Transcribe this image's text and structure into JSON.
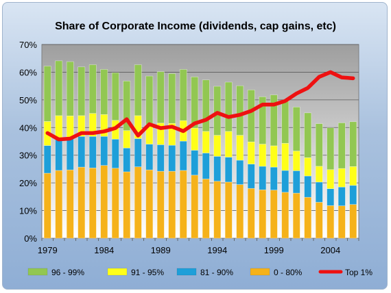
{
  "chart_data": {
    "type": "bar",
    "title": "Share of Corporate Income (dividends, cap gains, etc)",
    "xlabel": "",
    "ylabel": "",
    "ylim": [
      0,
      70
    ],
    "y_tick_step": 10,
    "y_tick_format": "percent",
    "x_tick_labels": [
      "1979",
      "1984",
      "1989",
      "1994",
      "1999",
      "2004"
    ],
    "grid": "horizontal",
    "legend_position": "bottom",
    "categories": [
      "1979",
      "1980",
      "1981",
      "1982",
      "1983",
      "1984",
      "1985",
      "1986",
      "1987",
      "1988",
      "1989",
      "1990",
      "1991",
      "1992",
      "1993",
      "1994",
      "1995",
      "1996",
      "1997",
      "1998",
      "1999",
      "2000",
      "2001",
      "2002",
      "2003",
      "2004",
      "2005",
      "2006"
    ],
    "stacked_series": [
      {
        "name": "0 - 80%",
        "color": "#f5b21a",
        "values": [
          23.5,
          24.5,
          24.7,
          25.7,
          25.4,
          26.3,
          25.3,
          24.0,
          25.8,
          24.7,
          24.2,
          24.2,
          24.5,
          22.8,
          21.4,
          20.6,
          20.3,
          19.4,
          18.0,
          17.5,
          17.4,
          16.6,
          16.3,
          14.8,
          13.0,
          11.8,
          11.7,
          12.2
        ]
      },
      {
        "name": "81 - 90%",
        "color": "#1e9fd9",
        "values": [
          10.0,
          11.5,
          11.4,
          11.1,
          11.4,
          10.5,
          10.5,
          8.6,
          10.2,
          9.3,
          9.6,
          9.4,
          10.6,
          9.0,
          9.4,
          9.0,
          9.0,
          8.8,
          8.8,
          8.5,
          8.3,
          7.9,
          8.1,
          7.7,
          7.3,
          6.1,
          6.8,
          6.9
        ]
      },
      {
        "name": "91 - 95%",
        "color": "#ffff19",
        "values": [
          8.7,
          8.3,
          8.1,
          7.5,
          8.3,
          7.9,
          6.8,
          6.3,
          8.3,
          7.1,
          7.8,
          7.9,
          7.4,
          8.0,
          7.8,
          7.6,
          9.3,
          9.0,
          8.0,
          8.0,
          7.7,
          9.8,
          7.1,
          6.6,
          5.7,
          6.9,
          6.7,
          6.8
        ]
      },
      {
        "name": "96 - 99%",
        "color": "#92c752",
        "values": [
          20.0,
          19.8,
          19.6,
          17.6,
          17.6,
          16.3,
          17.2,
          17.9,
          18.4,
          17.5,
          18.6,
          18.0,
          18.5,
          18.5,
          18.6,
          17.7,
          17.8,
          17.9,
          18.8,
          17.1,
          18.4,
          15.2,
          15.9,
          16.2,
          15.4,
          15.1,
          16.5,
          16.2
        ]
      }
    ],
    "line_series": [
      {
        "name": "Top 1%",
        "color": "#ee1111",
        "values": [
          38.0,
          35.7,
          36.0,
          38.0,
          38.0,
          38.6,
          39.8,
          43.0,
          37.1,
          41.2,
          39.8,
          40.3,
          38.7,
          41.5,
          42.8,
          45.3,
          43.8,
          44.6,
          46.0,
          48.3,
          48.3,
          49.6,
          52.3,
          54.3,
          58.3,
          60.0,
          58.1,
          57.8
        ]
      }
    ]
  }
}
